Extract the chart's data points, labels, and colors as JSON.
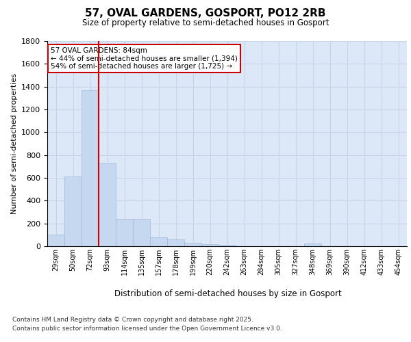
{
  "title_line1": "57, OVAL GARDENS, GOSPORT, PO12 2RB",
  "title_line2": "Size of property relative to semi-detached houses in Gosport",
  "xlabel": "Distribution of semi-detached houses by size in Gosport",
  "ylabel": "Number of semi-detached properties",
  "categories": [
    "29sqm",
    "50sqm",
    "72sqm",
    "93sqm",
    "114sqm",
    "135sqm",
    "157sqm",
    "178sqm",
    "199sqm",
    "220sqm",
    "242sqm",
    "263sqm",
    "284sqm",
    "305sqm",
    "327sqm",
    "348sqm",
    "369sqm",
    "390sqm",
    "412sqm",
    "433sqm",
    "454sqm"
  ],
  "values": [
    100,
    610,
    1370,
    730,
    240,
    240,
    80,
    60,
    30,
    20,
    10,
    0,
    0,
    0,
    0,
    25,
    0,
    0,
    0,
    0,
    0
  ],
  "bar_color": "#c5d8f0",
  "bar_edge_color": "#a0b8d8",
  "grid_color": "#c8d4e8",
  "background_color": "#dce8f8",
  "vline_x": 2.5,
  "vline_color": "#cc0000",
  "annotation_title": "57 OVAL GARDENS: 84sqm",
  "annotation_line1": "← 44% of semi-detached houses are smaller (1,394)",
  "annotation_line2": "54% of semi-detached houses are larger (1,725) →",
  "annotation_box_color": "#cc0000",
  "ylim": [
    0,
    1800
  ],
  "yticks": [
    0,
    200,
    400,
    600,
    800,
    1000,
    1200,
    1400,
    1600,
    1800
  ],
  "footnote1": "Contains HM Land Registry data © Crown copyright and database right 2025.",
  "footnote2": "Contains public sector information licensed under the Open Government Licence v3.0."
}
